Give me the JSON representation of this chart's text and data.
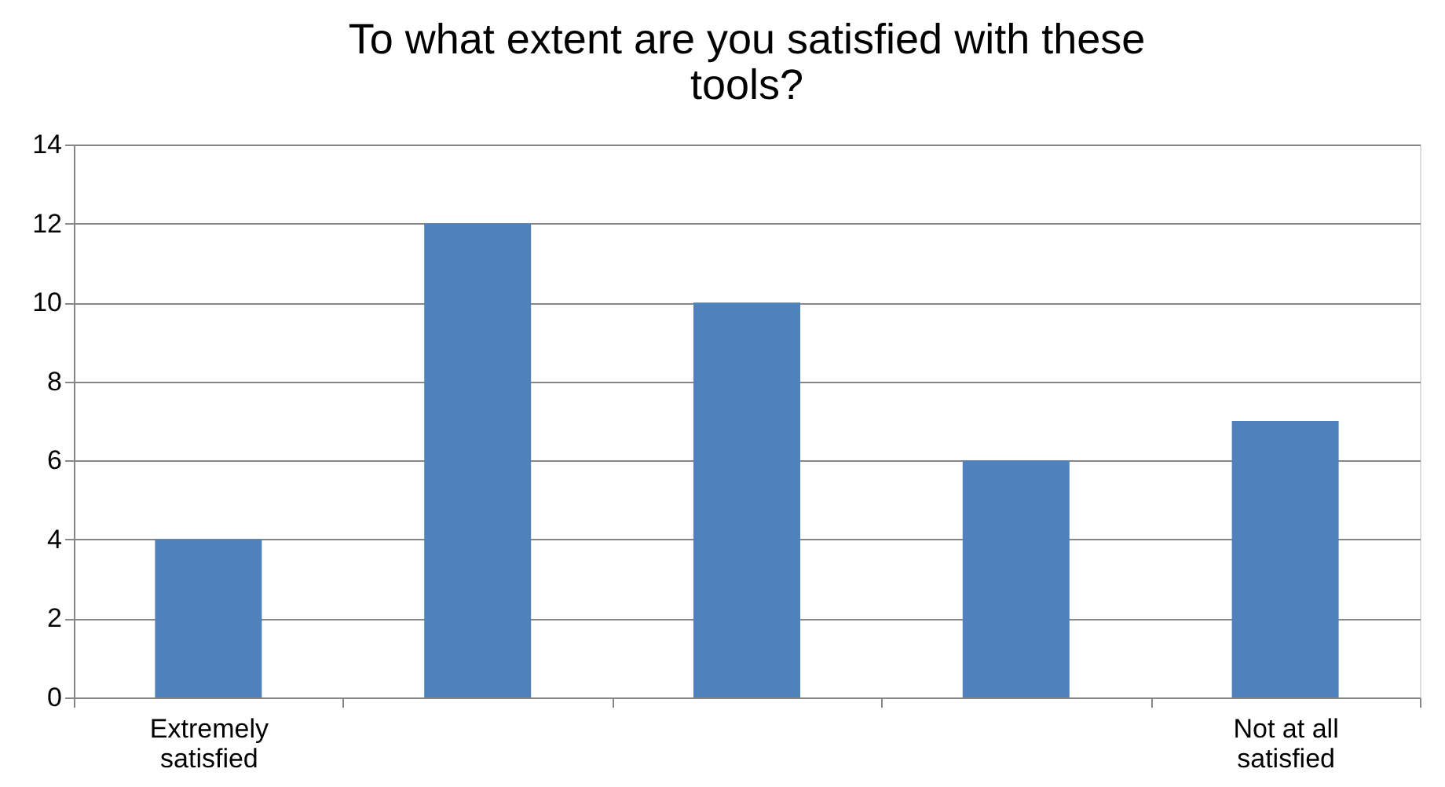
{
  "chart_data": {
    "type": "bar",
    "title": "To what extent are you satisfied with these tools?",
    "categories": [
      "Extremely satisfied",
      null,
      null,
      null,
      "Not at all satisfied"
    ],
    "values": [
      4,
      12,
      10,
      6,
      7
    ],
    "color": "#4f81bd",
    "ylim": [
      0,
      14
    ],
    "yticks": [
      0,
      2,
      4,
      6,
      8,
      10,
      12,
      14
    ],
    "grid": "y"
  }
}
